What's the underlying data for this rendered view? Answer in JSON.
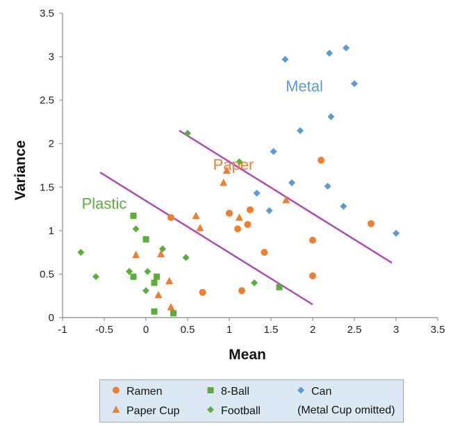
{
  "chart_data": {
    "type": "scatter",
    "title": "",
    "xlabel": "Mean",
    "ylabel": "Variance",
    "xlim": [
      -1,
      3.5
    ],
    "ylim": [
      0,
      3.5
    ],
    "x_ticks": [
      "-1",
      "-0.5",
      "0",
      "0.5",
      "1",
      "1.5",
      "2",
      "2.5",
      "3",
      "3.5"
    ],
    "y_ticks": [
      "0",
      "0.5",
      "1",
      "1.5",
      "2",
      "2.5",
      "3",
      "3.5"
    ],
    "grid": false,
    "legend_position": "bottom",
    "legend_note": "(Metal Cup omitted)",
    "series": [
      {
        "name": "Ramen",
        "marker": "circle",
        "color": "#ef7f2f",
        "points": [
          [
            0.3,
            1.15
          ],
          [
            0.68,
            0.29
          ],
          [
            1.0,
            1.2
          ],
          [
            1.1,
            1.02
          ],
          [
            1.15,
            0.31
          ],
          [
            1.22,
            1.07
          ],
          [
            1.25,
            1.24
          ],
          [
            1.42,
            0.75
          ],
          [
            2.0,
            0.89
          ],
          [
            2.0,
            0.48
          ],
          [
            2.1,
            1.81
          ],
          [
            2.7,
            1.08
          ]
        ]
      },
      {
        "name": "8-Ball",
        "marker": "square",
        "color": "#5aaf3c",
        "points": [
          [
            -0.15,
            1.17
          ],
          [
            -0.15,
            0.47
          ],
          [
            0.0,
            0.9
          ],
          [
            0.1,
            0.4
          ],
          [
            0.13,
            0.47
          ],
          [
            0.1,
            0.07
          ],
          [
            0.33,
            0.05
          ],
          [
            1.6,
            0.35
          ]
        ]
      },
      {
        "name": "Can",
        "marker": "diamond",
        "color": "#5b9bd5",
        "points": [
          [
            1.67,
            2.97
          ],
          [
            2.2,
            3.04
          ],
          [
            2.4,
            3.1
          ],
          [
            2.5,
            2.69
          ],
          [
            2.22,
            2.31
          ],
          [
            1.85,
            2.15
          ],
          [
            1.53,
            1.91
          ],
          [
            1.75,
            1.55
          ],
          [
            2.18,
            1.51
          ],
          [
            1.33,
            1.43
          ],
          [
            1.48,
            1.23
          ],
          [
            2.37,
            1.28
          ],
          [
            3.0,
            0.97
          ]
        ]
      },
      {
        "name": "Paper Cup",
        "marker": "triangle",
        "color": "#ef7f2f",
        "points": [
          [
            -0.12,
            0.72
          ],
          [
            0.18,
            0.73
          ],
          [
            0.15,
            0.26
          ],
          [
            0.28,
            0.42
          ],
          [
            0.3,
            0.12
          ],
          [
            0.6,
            1.17
          ],
          [
            0.65,
            1.03
          ],
          [
            0.93,
            1.55
          ],
          [
            0.97,
            1.69
          ],
          [
            1.12,
            1.15
          ],
          [
            1.68,
            1.35
          ]
        ]
      },
      {
        "name": "Football",
        "marker": "diamond",
        "color": "#5aaf3c",
        "points": [
          [
            -0.78,
            0.75
          ],
          [
            -0.6,
            0.47
          ],
          [
            -0.2,
            0.53
          ],
          [
            -0.12,
            1.02
          ],
          [
            0.02,
            0.53
          ],
          [
            0.0,
            0.31
          ],
          [
            0.2,
            0.79
          ],
          [
            0.48,
            0.69
          ],
          [
            0.5,
            2.12
          ],
          [
            1.12,
            1.79
          ],
          [
            1.3,
            0.4
          ]
        ]
      }
    ],
    "annotations": [
      {
        "text": "Metal",
        "x": 1.9,
        "y": 2.6,
        "color": "#5b9bd5"
      },
      {
        "text": "Paper",
        "x": 1.05,
        "y": 1.7,
        "color": "#ef7f2f"
      },
      {
        "text": "Plastic",
        "x": -0.5,
        "y": 1.25,
        "color": "#5aaf3c"
      }
    ],
    "boundary_lines": [
      {
        "color": "#b04ab8",
        "from": [
          0.4,
          2.15
        ],
        "to": [
          2.95,
          0.63
        ]
      },
      {
        "color": "#b04ab8",
        "from": [
          -0.55,
          1.67
        ],
        "to": [
          2.0,
          0.15
        ]
      }
    ]
  },
  "legend": {
    "items": [
      {
        "label": "Ramen",
        "marker": "circle",
        "color": "#ef7f2f"
      },
      {
        "label": "8-Ball",
        "marker": "square",
        "color": "#5aaf3c"
      },
      {
        "label": "Can",
        "marker": "diamond",
        "color": "#5b9bd5"
      },
      {
        "label": "Paper Cup",
        "marker": "triangle",
        "color": "#ef7f2f"
      },
      {
        "label": "Football",
        "marker": "diamond",
        "color": "#5aaf3c"
      }
    ],
    "note": "(Metal Cup omitted)"
  }
}
